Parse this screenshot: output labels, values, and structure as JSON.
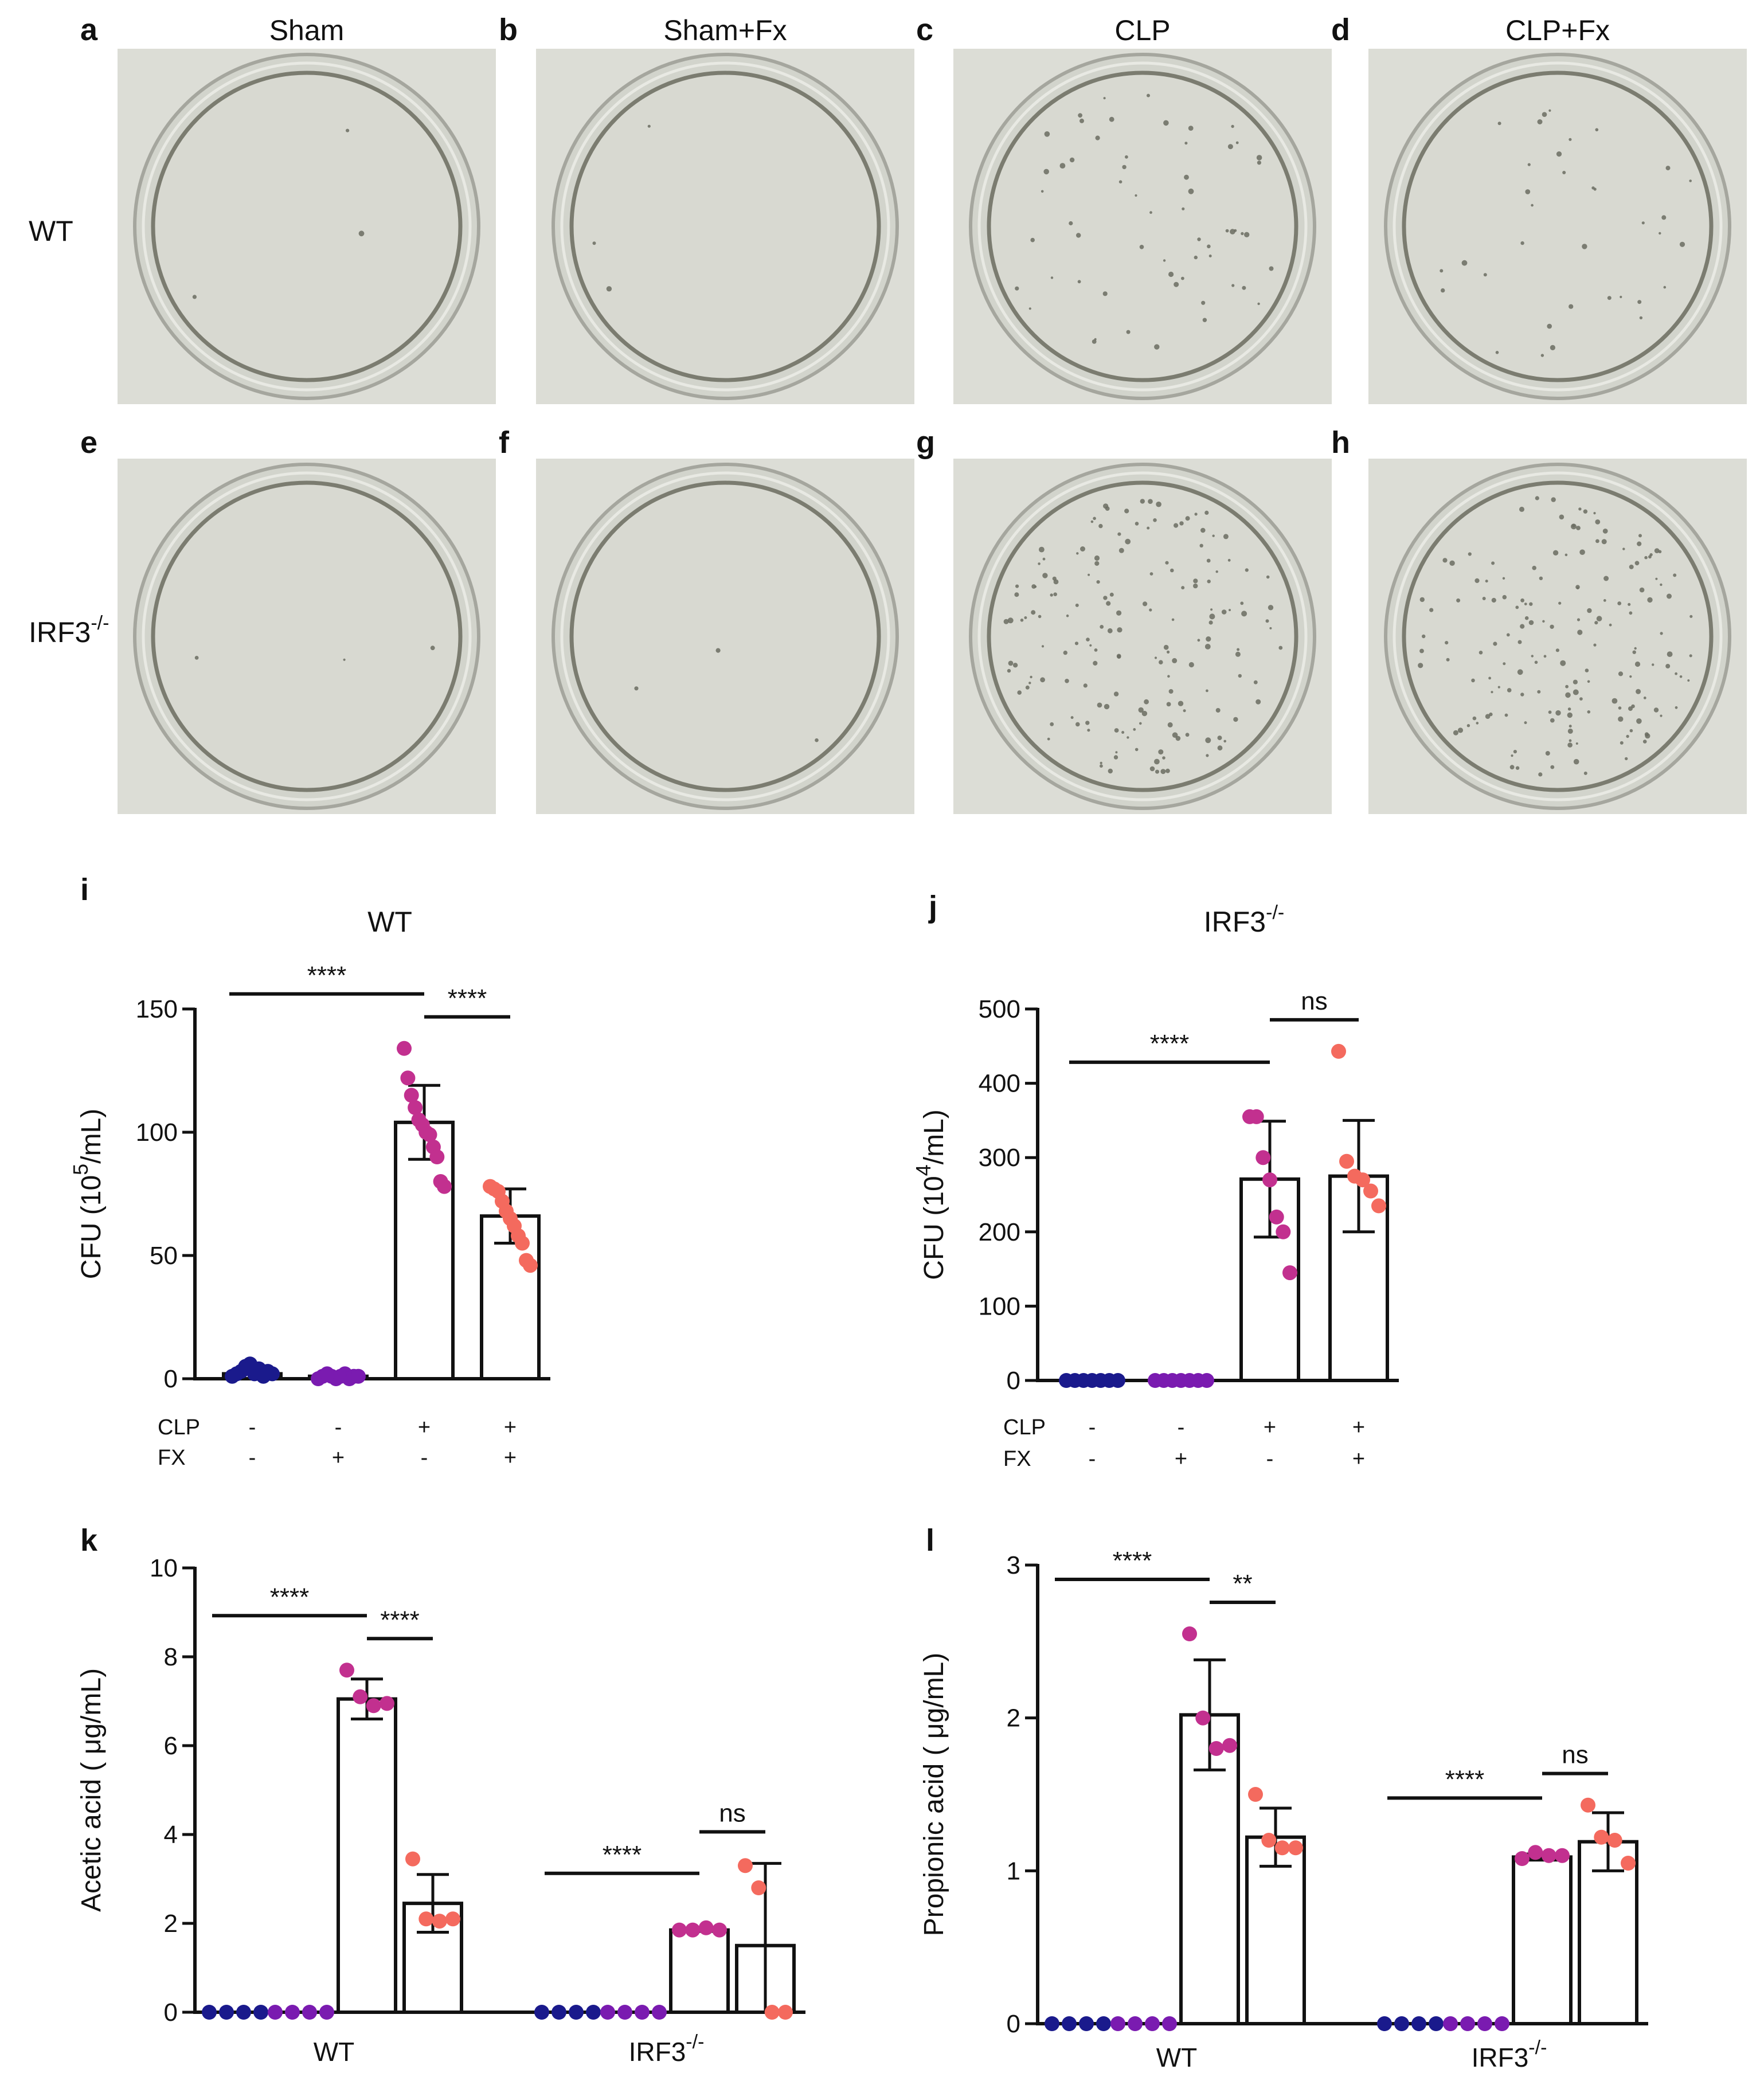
{
  "photos": {
    "columns": [
      {
        "letter_top": "a",
        "letter_bottom": "e",
        "title": "Sham"
      },
      {
        "letter_top": "b",
        "letter_bottom": "f",
        "title": "Sham+Fx"
      },
      {
        "letter_top": "c",
        "letter_bottom": "g",
        "title": "CLP"
      },
      {
        "letter_top": "d",
        "letter_bottom": "h",
        "title": "CLP+Fx"
      }
    ],
    "row_labels": [
      {
        "main": "WT",
        "sup": ""
      },
      {
        "main": "IRF3",
        "sup": "-/-"
      }
    ],
    "colony_density": [
      [
        0.0,
        0.0,
        0.35,
        0.2
      ],
      [
        0.0,
        0.0,
        1.0,
        1.0
      ]
    ]
  },
  "colors": {
    "navy": "#1a1a8c",
    "purple": "#7a1bb0",
    "magenta": "#c2308f",
    "salmon": "#f46a5e",
    "plate_bg": "#dcddd6",
    "axis": "#111111"
  },
  "chart_data": [
    {
      "type": "bar",
      "panel": "i",
      "title": "WT",
      "title_sup": "",
      "ylabel": "CFU (10",
      "ylabel_sup": "5",
      "ylabel_tail": "/mL)",
      "ylim": [
        0,
        150
      ],
      "yticks": [
        0,
        50,
        100,
        150
      ],
      "conditions": [
        {
          "name": "CLP",
          "values": [
            "-",
            "-",
            "+",
            "+"
          ]
        },
        {
          "name": "FX",
          "values": [
            "-",
            "+",
            "-",
            "+"
          ]
        }
      ],
      "bars": [
        {
          "value": 2,
          "err": 2,
          "color": "navy",
          "points": [
            1,
            2,
            3,
            5,
            6,
            2,
            4,
            1,
            3,
            2
          ]
        },
        {
          "value": 1,
          "err": 1,
          "color": "purple",
          "points": [
            0,
            1,
            2,
            1,
            0,
            1,
            2,
            0,
            1,
            1
          ]
        },
        {
          "value": 104,
          "err": 15,
          "color": "magenta",
          "points": [
            134,
            122,
            115,
            110,
            105,
            103,
            100,
            99,
            94,
            90,
            80,
            78
          ]
        },
        {
          "value": 66,
          "err": 11,
          "color": "salmon",
          "points": [
            78,
            77,
            76,
            72,
            68,
            65,
            62,
            58,
            55,
            48,
            46
          ]
        }
      ],
      "sig": [
        {
          "from": 0,
          "to": 2,
          "label": "****"
        },
        {
          "from": 2,
          "to": 3,
          "label": "****"
        }
      ]
    },
    {
      "type": "bar",
      "panel": "j",
      "title": "IRF3",
      "title_sup": "-/-",
      "ylabel": "CFU (10",
      "ylabel_sup": "4",
      "ylabel_tail": "/mL)",
      "ylim": [
        0,
        500
      ],
      "yticks": [
        0,
        100,
        200,
        300,
        400,
        500
      ],
      "conditions": [
        {
          "name": "CLP",
          "values": [
            "-",
            "-",
            "+",
            "+"
          ]
        },
        {
          "name": "FX",
          "values": [
            "-",
            "+",
            "-",
            "+"
          ]
        }
      ],
      "bars": [
        {
          "value": 0,
          "err": 1,
          "color": "navy",
          "points": [
            0,
            0,
            0,
            0,
            0,
            0,
            0
          ]
        },
        {
          "value": 0,
          "err": 1,
          "color": "purple",
          "points": [
            0,
            0,
            0,
            0,
            0,
            0,
            0
          ]
        },
        {
          "value": 271,
          "err": 78,
          "color": "magenta",
          "points": [
            355,
            355,
            300,
            270,
            220,
            200,
            145
          ]
        },
        {
          "value": 275,
          "err": 75,
          "color": "salmon",
          "points": [
            443,
            295,
            275,
            270,
            255,
            235
          ]
        }
      ],
      "sig": [
        {
          "from": 0,
          "to": 2,
          "label": "****"
        },
        {
          "from": 2,
          "to": 3,
          "label": "ns"
        }
      ]
    },
    {
      "type": "bar",
      "panel": "k",
      "title": "",
      "ylabel": "Acetic acid ( μg/mL)",
      "ylim": [
        0,
        10
      ],
      "yticks": [
        0,
        2,
        4,
        6,
        8,
        10
      ],
      "groups": [
        {
          "label": "WT",
          "sup": ""
        },
        {
          "label": "IRF3",
          "sup": "-/-"
        }
      ],
      "bars": [
        {
          "group": 0,
          "value": 0,
          "err": 0,
          "color": "navy",
          "points": [
            0,
            0,
            0,
            0
          ]
        },
        {
          "group": 0,
          "value": 0,
          "err": 0,
          "color": "purple",
          "points": [
            0,
            0,
            0,
            0
          ]
        },
        {
          "group": 0,
          "value": 7.05,
          "err": 0.45,
          "color": "magenta",
          "points": [
            7.7,
            7.1,
            6.9,
            6.95
          ]
        },
        {
          "group": 0,
          "value": 2.45,
          "err": 0.65,
          "color": "salmon",
          "points": [
            3.45,
            2.1,
            2.05,
            2.1
          ]
        },
        {
          "group": 1,
          "value": 0,
          "err": 0,
          "color": "navy",
          "points": [
            0,
            0,
            0,
            0
          ]
        },
        {
          "group": 1,
          "value": 0,
          "err": 0,
          "color": "purple",
          "points": [
            0,
            0,
            0,
            0
          ]
        },
        {
          "group": 1,
          "value": 1.85,
          "err": 0.03,
          "color": "magenta",
          "points": [
            1.85,
            1.85,
            1.9,
            1.85
          ]
        },
        {
          "group": 1,
          "value": 1.5,
          "err": 1.85,
          "color": "salmon",
          "points": [
            3.3,
            2.8,
            0,
            0
          ]
        }
      ],
      "sig": [
        {
          "from": 0,
          "to": 2,
          "label": "****"
        },
        {
          "from": 2,
          "to": 3,
          "label": "****"
        },
        {
          "from": 4,
          "to": 6,
          "label": "****"
        },
        {
          "from": 6,
          "to": 7,
          "label": "ns"
        }
      ]
    },
    {
      "type": "bar",
      "panel": "l",
      "title": "",
      "ylabel": "Propionic acid ( μg/mL)",
      "ylim": [
        0,
        3
      ],
      "yticks": [
        0,
        1,
        2,
        3
      ],
      "groups": [
        {
          "label": "WT",
          "sup": ""
        },
        {
          "label": "IRF3",
          "sup": "-/-"
        }
      ],
      "bars": [
        {
          "group": 0,
          "value": 0,
          "err": 0,
          "color": "navy",
          "points": [
            0,
            0,
            0,
            0
          ]
        },
        {
          "group": 0,
          "value": 0,
          "err": 0,
          "color": "purple",
          "points": [
            0,
            0,
            0,
            0
          ]
        },
        {
          "group": 0,
          "value": 2.02,
          "err": 0.36,
          "color": "magenta",
          "points": [
            2.55,
            2.0,
            1.8,
            1.82
          ]
        },
        {
          "group": 0,
          "value": 1.22,
          "err": 0.19,
          "color": "salmon",
          "points": [
            1.5,
            1.2,
            1.15,
            1.15
          ]
        },
        {
          "group": 1,
          "value": 0,
          "err": 0,
          "color": "navy",
          "points": [
            0,
            0,
            0,
            0
          ]
        },
        {
          "group": 1,
          "value": 0,
          "err": 0,
          "color": "purple",
          "points": [
            0,
            0,
            0,
            0
          ]
        },
        {
          "group": 1,
          "value": 1.09,
          "err": 0.02,
          "color": "magenta",
          "points": [
            1.08,
            1.12,
            1.1,
            1.1
          ]
        },
        {
          "group": 1,
          "value": 1.19,
          "err": 0.19,
          "color": "salmon",
          "points": [
            1.43,
            1.22,
            1.2,
            1.05
          ]
        }
      ],
      "sig": [
        {
          "from": 0,
          "to": 2,
          "label": "****"
        },
        {
          "from": 2,
          "to": 3,
          "label": "**"
        },
        {
          "from": 4,
          "to": 6,
          "label": "****"
        },
        {
          "from": 6,
          "to": 7,
          "label": "ns"
        }
      ]
    }
  ]
}
